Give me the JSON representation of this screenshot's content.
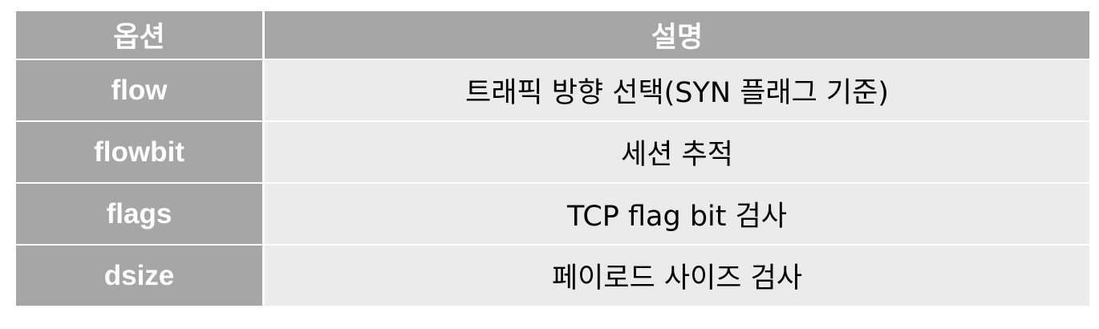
{
  "table": {
    "header": {
      "option": "옵션",
      "description": "설명"
    },
    "rows": [
      {
        "option": "flow",
        "description": "트래픽 방향 선택(SYN 플래그 기준)"
      },
      {
        "option": "flowbit",
        "description": "세션 추적"
      },
      {
        "option": "flags",
        "description": "TCP flag bit 검사"
      },
      {
        "option": "dsize",
        "description": "페이로드 사이즈 검사"
      }
    ]
  }
}
